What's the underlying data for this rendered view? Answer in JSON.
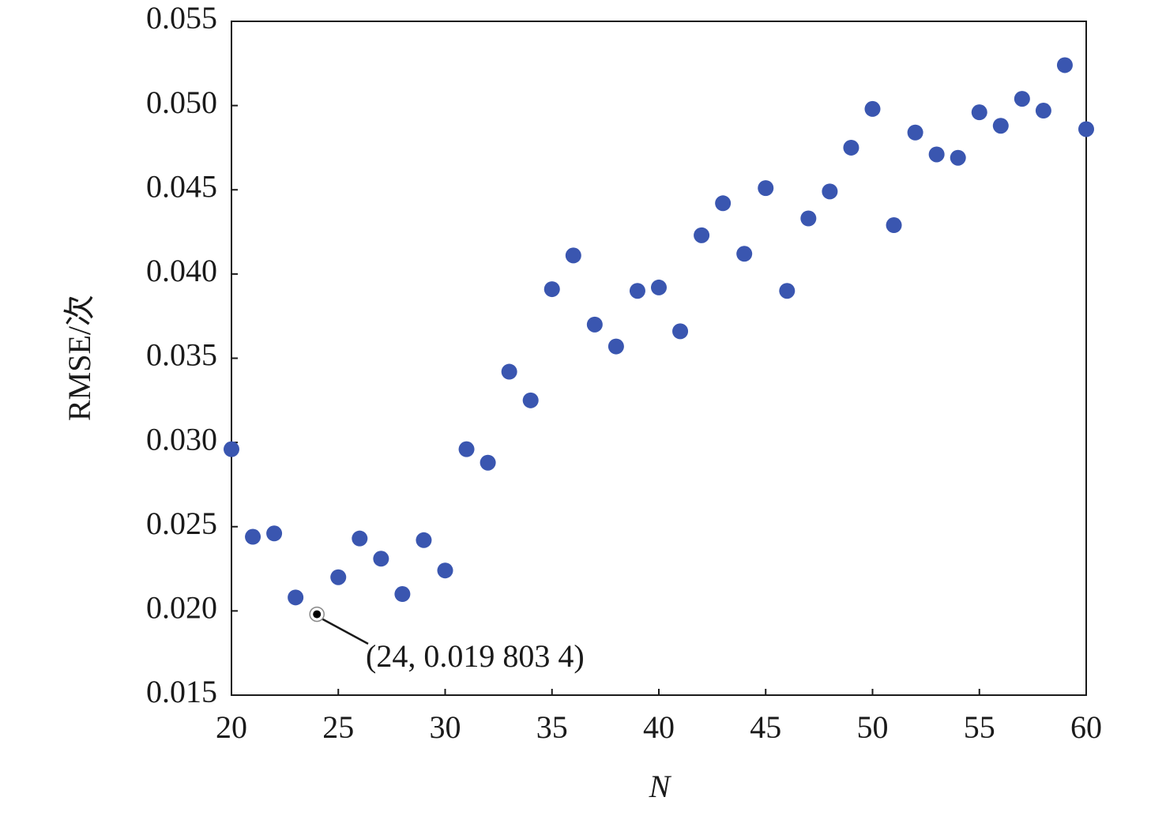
{
  "chart_data": {
    "type": "scatter",
    "x_label": "N",
    "y_label": "RMSE/次",
    "x": [
      20,
      21,
      22,
      23,
      25,
      26,
      27,
      28,
      29,
      30,
      31,
      32,
      33,
      34,
      35,
      36,
      37,
      38,
      39,
      40,
      41,
      42,
      43,
      44,
      45,
      46,
      47,
      48,
      49,
      50,
      51,
      52,
      53,
      54,
      55,
      56,
      57,
      58,
      59,
      60
    ],
    "series": [
      {
        "color": "#3a56b0",
        "values": [
          0.0296,
          0.0244,
          0.0246,
          0.0208,
          0.022,
          0.0243,
          0.0231,
          0.021,
          0.0242,
          0.0224,
          0.0296,
          0.0288,
          0.0342,
          0.0325,
          0.0391,
          0.0411,
          0.037,
          0.0357,
          0.039,
          0.0392,
          0.0366,
          0.0423,
          0.0442,
          0.0412,
          0.0451,
          0.039,
          0.0433,
          0.0449,
          0.0475,
          0.0498,
          0.0429,
          0.0484,
          0.0471,
          0.0469,
          0.0496,
          0.0488,
          0.0504,
          0.0497,
          0.0524,
          0.0486
        ]
      }
    ],
    "annotation": {
      "x": 24,
      "y": 0.0198034,
      "text": "(24, 0.019 803 4)"
    },
    "xlim": [
      20,
      60
    ],
    "xticks": [
      20,
      25,
      30,
      35,
      40,
      45,
      50,
      55,
      60
    ],
    "ylim": [
      0.015,
      0.055
    ],
    "yticks": [
      0.015,
      {
        "value": 0.02,
        "label": "0.020"
      },
      0.025,
      {
        "value": 0.03,
        "label": "0.030"
      },
      0.035,
      {
        "value": 0.04,
        "label": "0.040"
      },
      0.045,
      {
        "value": 0.05,
        "label": "0.050"
      },
      0.055
    ],
    "grid": false
  }
}
